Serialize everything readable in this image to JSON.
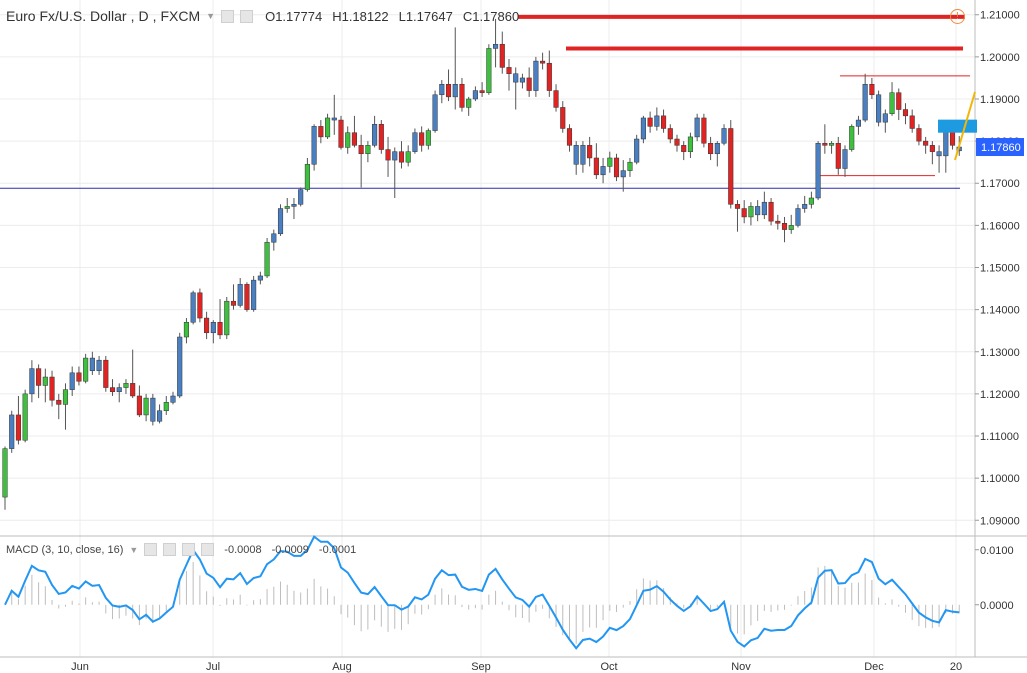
{
  "symbol": {
    "name": "Euro Fx/U.S. Dollar",
    "timeframe": "D",
    "source": "FXCM",
    "ohlc": {
      "open": "O1.17774",
      "high": "H1.18122",
      "low": "L1.17647",
      "close": "C1.17860"
    },
    "price_badge": "1.17860",
    "badge_color": "#2962ff"
  },
  "macd": {
    "label": "MACD (3, 10, close, 16)",
    "values": [
      "-0.0008",
      "-0.0009",
      "-0.0001"
    ],
    "value_colors": [
      "#999999",
      "#2196f3",
      "#e53935"
    ]
  },
  "colors": {
    "up": "#3fbf3f",
    "down": "#e02424",
    "neutral": "#4a7fc1",
    "macd_line": "#2196f3"
  },
  "chart_data": {
    "type": "candlestick",
    "price_axis": {
      "ticks": [
        "1.21000",
        "1.20000",
        "1.19000",
        "1.18000",
        "1.17000",
        "1.16000",
        "1.15000",
        "1.14000",
        "1.13000",
        "1.12000",
        "1.11000",
        "1.10000",
        "1.09000"
      ],
      "range": [
        1.0865,
        1.2135
      ]
    },
    "macd_axis": {
      "ticks": [
        "0.0100",
        "0.0000"
      ],
      "range": [
        -0.0095,
        0.0125
      ]
    },
    "time_labels": [
      "Jun",
      "Jul",
      "Aug",
      "Sep",
      "Oct",
      "Nov",
      "Dec",
      "20"
    ],
    "horizontal_lines": [
      {
        "price": 1.2095,
        "color": "#e02424",
        "style": "thick"
      },
      {
        "price": 1.202,
        "color": "#e02424",
        "style": "thick"
      },
      {
        "price": 1.1955,
        "color": "#e02424",
        "style": "thin"
      },
      {
        "price": 1.1718,
        "color": "#e02424",
        "style": "thin"
      },
      {
        "price": 1.1688,
        "color": "#2c2cb4",
        "style": "thin"
      }
    ],
    "candles": [
      [
        1.0955,
        1.1075,
        1.0925,
        1.107
      ],
      [
        1.107,
        1.116,
        1.106,
        1.115
      ],
      [
        1.115,
        1.1195,
        1.108,
        1.109
      ],
      [
        1.109,
        1.121,
        1.1085,
        1.12
      ],
      [
        1.12,
        1.128,
        1.118,
        1.126
      ],
      [
        1.126,
        1.127,
        1.119,
        1.122
      ],
      [
        1.122,
        1.126,
        1.118,
        1.124
      ],
      [
        1.124,
        1.1255,
        1.117,
        1.1185
      ],
      [
        1.1185,
        1.12,
        1.114,
        1.1175
      ],
      [
        1.1175,
        1.1225,
        1.1115,
        1.121
      ],
      [
        1.121,
        1.1265,
        1.1195,
        1.125
      ],
      [
        1.125,
        1.1265,
        1.122,
        1.123
      ],
      [
        1.123,
        1.1295,
        1.1225,
        1.1285
      ],
      [
        1.1285,
        1.13,
        1.1245,
        1.1255
      ],
      [
        1.1255,
        1.129,
        1.1245,
        1.128
      ],
      [
        1.128,
        1.129,
        1.1205,
        1.1215
      ],
      [
        1.1215,
        1.1235,
        1.1195,
        1.1205
      ],
      [
        1.1205,
        1.1225,
        1.118,
        1.1215
      ],
      [
        1.1215,
        1.1235,
        1.12,
        1.1225
      ],
      [
        1.1225,
        1.1305,
        1.119,
        1.1195
      ],
      [
        1.1195,
        1.122,
        1.1145,
        1.115
      ],
      [
        1.115,
        1.12,
        1.1135,
        1.119
      ],
      [
        1.119,
        1.12,
        1.1125,
        1.1135
      ],
      [
        1.1135,
        1.1175,
        1.113,
        1.116
      ],
      [
        1.116,
        1.1195,
        1.115,
        1.118
      ],
      [
        1.118,
        1.1205,
        1.1175,
        1.1195
      ],
      [
        1.1195,
        1.1345,
        1.119,
        1.1335
      ],
      [
        1.1335,
        1.138,
        1.132,
        1.137
      ],
      [
        1.137,
        1.1445,
        1.1365,
        1.144
      ],
      [
        1.144,
        1.145,
        1.137,
        1.138
      ],
      [
        1.138,
        1.1395,
        1.133,
        1.1345
      ],
      [
        1.1345,
        1.1375,
        1.132,
        1.137
      ],
      [
        1.137,
        1.1425,
        1.133,
        1.134
      ],
      [
        1.134,
        1.143,
        1.133,
        1.142
      ],
      [
        1.142,
        1.146,
        1.14,
        1.141
      ],
      [
        1.141,
        1.1475,
        1.1405,
        1.146
      ],
      [
        1.146,
        1.1465,
        1.1395,
        1.14
      ],
      [
        1.14,
        1.148,
        1.1395,
        1.147
      ],
      [
        1.147,
        1.149,
        1.146,
        1.148
      ],
      [
        1.148,
        1.157,
        1.1475,
        1.156
      ],
      [
        1.156,
        1.159,
        1.154,
        1.158
      ],
      [
        1.158,
        1.165,
        1.1575,
        1.164
      ],
      [
        1.164,
        1.1665,
        1.163,
        1.1645
      ],
      [
        1.1645,
        1.1665,
        1.1615,
        1.165
      ],
      [
        1.165,
        1.169,
        1.1645,
        1.1685
      ],
      [
        1.1685,
        1.176,
        1.168,
        1.1745
      ],
      [
        1.1745,
        1.184,
        1.173,
        1.1835
      ],
      [
        1.1835,
        1.185,
        1.1795,
        1.181
      ],
      [
        1.181,
        1.1865,
        1.1805,
        1.1855
      ],
      [
        1.1855,
        1.191,
        1.1815,
        1.185
      ],
      [
        1.185,
        1.186,
        1.178,
        1.1785
      ],
      [
        1.1785,
        1.1835,
        1.177,
        1.182
      ],
      [
        1.182,
        1.186,
        1.1785,
        1.179
      ],
      [
        1.179,
        1.1815,
        1.169,
        1.177
      ],
      [
        1.177,
        1.18,
        1.175,
        1.179
      ],
      [
        1.179,
        1.186,
        1.1785,
        1.184
      ],
      [
        1.184,
        1.185,
        1.177,
        1.178
      ],
      [
        1.178,
        1.181,
        1.1715,
        1.1755
      ],
      [
        1.1755,
        1.1785,
        1.1665,
        1.1775
      ],
      [
        1.1775,
        1.18,
        1.1735,
        1.175
      ],
      [
        1.175,
        1.179,
        1.174,
        1.1775
      ],
      [
        1.1775,
        1.183,
        1.177,
        1.182
      ],
      [
        1.182,
        1.1835,
        1.1775,
        1.179
      ],
      [
        1.179,
        1.183,
        1.178,
        1.1825
      ],
      [
        1.1825,
        1.192,
        1.182,
        1.191
      ],
      [
        1.191,
        1.1945,
        1.189,
        1.1935
      ],
      [
        1.1935,
        1.197,
        1.1895,
        1.1905
      ],
      [
        1.1905,
        1.207,
        1.1875,
        1.1935
      ],
      [
        1.1935,
        1.195,
        1.187,
        1.188
      ],
      [
        1.188,
        1.1905,
        1.186,
        1.19
      ],
      [
        1.19,
        1.193,
        1.1895,
        1.192
      ],
      [
        1.192,
        1.194,
        1.1905,
        1.1915
      ],
      [
        1.1915,
        1.203,
        1.191,
        1.202
      ],
      [
        1.202,
        1.209,
        1.1975,
        1.203
      ],
      [
        1.203,
        1.206,
        1.196,
        1.1975
      ],
      [
        1.1975,
        1.1995,
        1.192,
        1.196
      ],
      [
        1.196,
        1.1975,
        1.1875,
        1.194
      ],
      [
        1.194,
        1.196,
        1.1925,
        1.195
      ],
      [
        1.195,
        1.1975,
        1.1905,
        1.192
      ],
      [
        1.192,
        1.2,
        1.1905,
        1.199
      ],
      [
        1.199,
        1.201,
        1.197,
        1.1985
      ],
      [
        1.1985,
        1.2015,
        1.1905,
        1.192
      ],
      [
        1.192,
        1.1935,
        1.187,
        1.188
      ],
      [
        1.188,
        1.1895,
        1.182,
        1.183
      ],
      [
        1.183,
        1.184,
        1.1775,
        1.179
      ],
      [
        1.179,
        1.18,
        1.172,
        1.1745
      ],
      [
        1.1745,
        1.18,
        1.1725,
        1.179
      ],
      [
        1.179,
        1.181,
        1.174,
        1.176
      ],
      [
        1.176,
        1.1795,
        1.171,
        1.172
      ],
      [
        1.172,
        1.176,
        1.17,
        1.174
      ],
      [
        1.174,
        1.1775,
        1.1725,
        1.176
      ],
      [
        1.176,
        1.177,
        1.1705,
        1.1715
      ],
      [
        1.1715,
        1.1755,
        1.168,
        1.173
      ],
      [
        1.173,
        1.176,
        1.1715,
        1.175
      ],
      [
        1.175,
        1.1815,
        1.1745,
        1.1805
      ],
      [
        1.1805,
        1.186,
        1.1795,
        1.1855
      ],
      [
        1.1855,
        1.187,
        1.182,
        1.1835
      ],
      [
        1.1835,
        1.188,
        1.1825,
        1.186
      ],
      [
        1.186,
        1.1875,
        1.182,
        1.183
      ],
      [
        1.183,
        1.184,
        1.1795,
        1.1805
      ],
      [
        1.1805,
        1.1815,
        1.1775,
        1.179
      ],
      [
        1.179,
        1.18,
        1.1755,
        1.1775
      ],
      [
        1.1775,
        1.182,
        1.176,
        1.181
      ],
      [
        1.181,
        1.1865,
        1.18,
        1.1855
      ],
      [
        1.1855,
        1.1865,
        1.1785,
        1.1795
      ],
      [
        1.1795,
        1.181,
        1.1755,
        1.177
      ],
      [
        1.177,
        1.18,
        1.174,
        1.1795
      ],
      [
        1.1795,
        1.184,
        1.179,
        1.183
      ],
      [
        1.183,
        1.185,
        1.164,
        1.165
      ],
      [
        1.165,
        1.166,
        1.1585,
        1.164
      ],
      [
        1.164,
        1.166,
        1.1605,
        1.162
      ],
      [
        1.162,
        1.1655,
        1.16,
        1.1645
      ],
      [
        1.1645,
        1.166,
        1.161,
        1.1625
      ],
      [
        1.1625,
        1.168,
        1.1615,
        1.1655
      ],
      [
        1.1655,
        1.1665,
        1.16,
        1.161
      ],
      [
        1.161,
        1.1625,
        1.159,
        1.1605
      ],
      [
        1.1605,
        1.162,
        1.156,
        1.159
      ],
      [
        1.159,
        1.1625,
        1.158,
        1.16
      ],
      [
        1.16,
        1.165,
        1.1595,
        1.164
      ],
      [
        1.164,
        1.167,
        1.163,
        1.165
      ],
      [
        1.165,
        1.168,
        1.164,
        1.1665
      ],
      [
        1.1665,
        1.18,
        1.166,
        1.1795
      ],
      [
        1.1795,
        1.184,
        1.177,
        1.179
      ],
      [
        1.179,
        1.18,
        1.177,
        1.1795
      ],
      [
        1.1795,
        1.181,
        1.172,
        1.1735
      ],
      [
        1.1735,
        1.179,
        1.1715,
        1.178
      ],
      [
        1.178,
        1.184,
        1.1775,
        1.1835
      ],
      [
        1.1835,
        1.186,
        1.1815,
        1.185
      ],
      [
        1.185,
        1.196,
        1.1845,
        1.1935
      ],
      [
        1.1935,
        1.195,
        1.19,
        1.191
      ],
      [
        1.191,
        1.192,
        1.1835,
        1.1845
      ],
      [
        1.1845,
        1.1875,
        1.182,
        1.1865
      ],
      [
        1.1865,
        1.194,
        1.186,
        1.1915
      ],
      [
        1.1915,
        1.1925,
        1.185,
        1.1875
      ],
      [
        1.1875,
        1.189,
        1.184,
        1.186
      ],
      [
        1.186,
        1.1875,
        1.182,
        1.183
      ],
      [
        1.183,
        1.184,
        1.179,
        1.18
      ],
      [
        1.18,
        1.181,
        1.177,
        1.179
      ],
      [
        1.179,
        1.18,
        1.1745,
        1.1775
      ],
      [
        1.1775,
        1.179,
        1.1725,
        1.1765
      ],
      [
        1.1765,
        1.184,
        1.1725,
        1.183
      ],
      [
        1.183,
        1.185,
        1.178,
        1.179
      ],
      [
        1.1777,
        1.1812,
        1.1765,
        1.1786
      ]
    ],
    "annotations": [
      {
        "type": "rectangle",
        "price_top": 1.1851,
        "price_bottom": 1.182,
        "color": "#1e9be0"
      },
      {
        "type": "trendline",
        "color": "#f2b705"
      }
    ]
  }
}
